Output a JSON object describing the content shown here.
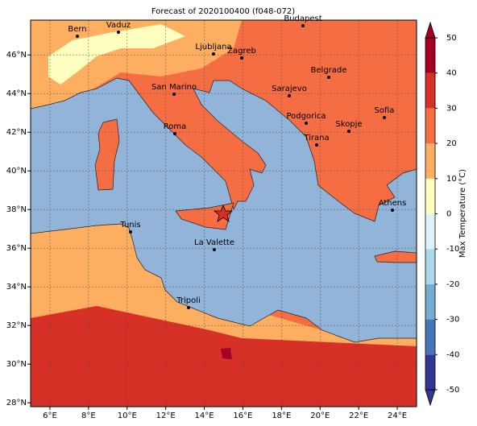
{
  "title": "Forecast of 2020100400 (f048-072)",
  "map": {
    "xlim": [
      5,
      25
    ],
    "ylim": [
      27.8,
      47.8
    ],
    "xticks": [
      {
        "value": 6,
        "label": "6°E"
      },
      {
        "value": 8,
        "label": "8°E"
      },
      {
        "value": 10,
        "label": "10°E"
      },
      {
        "value": 12,
        "label": "12°E"
      },
      {
        "value": 14,
        "label": "14°E"
      },
      {
        "value": 16,
        "label": "16°E"
      },
      {
        "value": 18,
        "label": "18°E"
      },
      {
        "value": 20,
        "label": "20°E"
      },
      {
        "value": 22,
        "label": "22°E"
      },
      {
        "value": 24,
        "label": "24°E"
      }
    ],
    "yticks": [
      {
        "value": 28,
        "label": "28°N"
      },
      {
        "value": 30,
        "label": "30°N"
      },
      {
        "value": 32,
        "label": "32°N"
      },
      {
        "value": 34,
        "label": "34°N"
      },
      {
        "value": 36,
        "label": "36°N"
      },
      {
        "value": 38,
        "label": "38°N"
      },
      {
        "value": 40,
        "label": "40°N"
      },
      {
        "value": 42,
        "label": "42°N"
      },
      {
        "value": 44,
        "label": "44°N"
      },
      {
        "value": 46,
        "label": "46°N"
      }
    ],
    "grid": true,
    "cities": [
      "Bern",
      "Vaduz",
      "Budapest",
      "Ljubljana",
      "Zagreb",
      "Belgrade",
      "San Marino",
      "Sarajevo",
      "Sofia",
      "Podgorica",
      "Skopje",
      "Roma",
      "Tirana",
      "Athens",
      "Tunis",
      "La Valette",
      "Tripoli"
    ]
  },
  "colorbar": {
    "label": "Max Temperature (°C)",
    "lim": [
      -50,
      50
    ],
    "ticks": [
      -50,
      -40,
      -30,
      -20,
      -10,
      0,
      10,
      20,
      30,
      40,
      50
    ],
    "colors": [
      "#313695",
      "#4575b4",
      "#74add1",
      "#abd9e9",
      "#e0f3f8",
      "#ffffbf",
      "#fdae61",
      "#f46d43",
      "#d73027",
      "#a50026"
    ]
  }
}
